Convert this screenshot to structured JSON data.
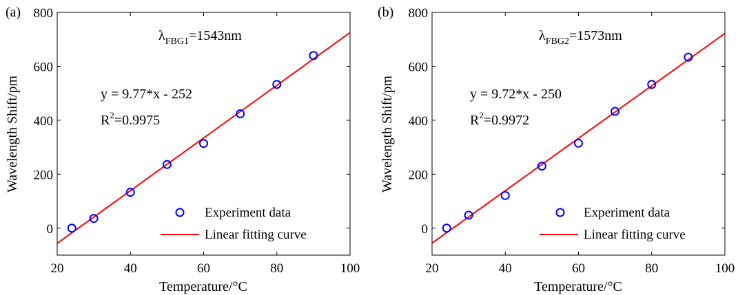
{
  "figure": {
    "panels": [
      {
        "panel_label": "(a)",
        "wavelength_label": "λ",
        "wavelength_subscript": "FBG1",
        "wavelength_value": "=1543nm",
        "equation": "y = 9.77*x - 252",
        "r2_prefix": "R",
        "r2_sup": "2",
        "r2_value": "=0.9975"
      },
      {
        "panel_label": "(b)",
        "wavelength_label": "λ",
        "wavelength_subscript": "FBG2",
        "wavelength_value": "=1573nm",
        "equation": "y = 9.72*x - 250",
        "r2_prefix": "R",
        "r2_sup": "2",
        "r2_value": "=0.9972"
      }
    ]
  },
  "chart_data": [
    {
      "type": "scatter",
      "xlabel": "Temperature/°C",
      "ylabel": "Wavelength Shift/pm",
      "xlim": [
        20,
        100
      ],
      "ylim": [
        -100,
        800
      ],
      "xticks": [
        20,
        40,
        60,
        80,
        100
      ],
      "yticks": [
        0,
        200,
        400,
        600,
        800
      ],
      "grid": false,
      "legend_position": "bottom-right",
      "series": [
        {
          "name": "Experiment data",
          "kind": "markers",
          "color": "#0000ff",
          "x": [
            24,
            30,
            40,
            50,
            60,
            70,
            80,
            90
          ],
          "y": [
            0,
            36,
            133,
            236,
            314,
            424,
            533,
            640
          ]
        },
        {
          "name": "Linear fitting curve",
          "kind": "line",
          "color": "#ff0000",
          "slope": 9.77,
          "intercept": -252
        }
      ]
    },
    {
      "type": "scatter",
      "xlabel": "Temperature/°C",
      "ylabel": "Wavelength Shift/pm",
      "xlim": [
        20,
        100
      ],
      "ylim": [
        -100,
        800
      ],
      "xticks": [
        20,
        40,
        60,
        80,
        100
      ],
      "yticks": [
        0,
        200,
        400,
        600,
        800
      ],
      "grid": false,
      "legend_position": "bottom-right",
      "series": [
        {
          "name": "Experiment data",
          "kind": "markers",
          "color": "#0000ff",
          "x": [
            24,
            30,
            40,
            50,
            60,
            70,
            80,
            90
          ],
          "y": [
            0,
            48,
            121,
            230,
            315,
            433,
            533,
            634
          ]
        },
        {
          "name": "Linear fitting curve",
          "kind": "line",
          "color": "#ff0000",
          "slope": 9.72,
          "intercept": -250
        }
      ]
    }
  ]
}
